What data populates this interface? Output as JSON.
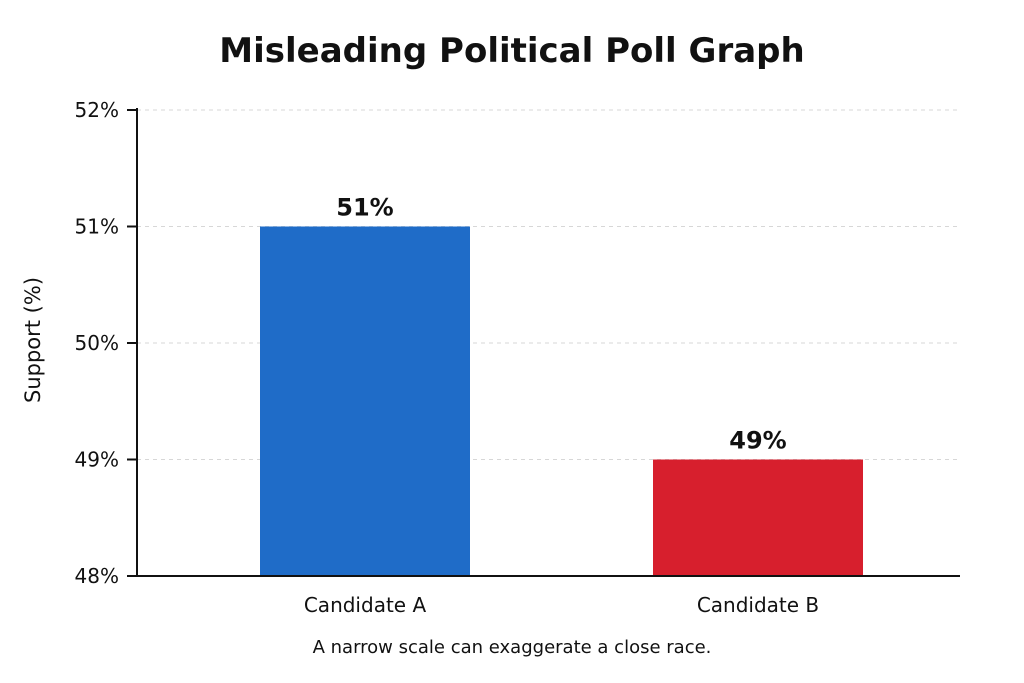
{
  "chart_data": {
    "type": "bar",
    "title": "Misleading Political Poll Graph",
    "xlabel": "",
    "ylabel": "Support (%)",
    "categories": [
      "Candidate A",
      "Candidate B"
    ],
    "values": [
      51,
      49
    ],
    "value_labels": [
      "51%",
      "49%"
    ],
    "ylim": [
      48,
      52
    ],
    "yticks": [
      48,
      49,
      50,
      51,
      52
    ],
    "ytick_labels": [
      "48%",
      "49%",
      "50%",
      "51%",
      "52%"
    ],
    "colors": [
      "#1f6cc8",
      "#d71f2d"
    ],
    "grid": true,
    "caption": "A narrow scale can exaggerate a close race."
  }
}
